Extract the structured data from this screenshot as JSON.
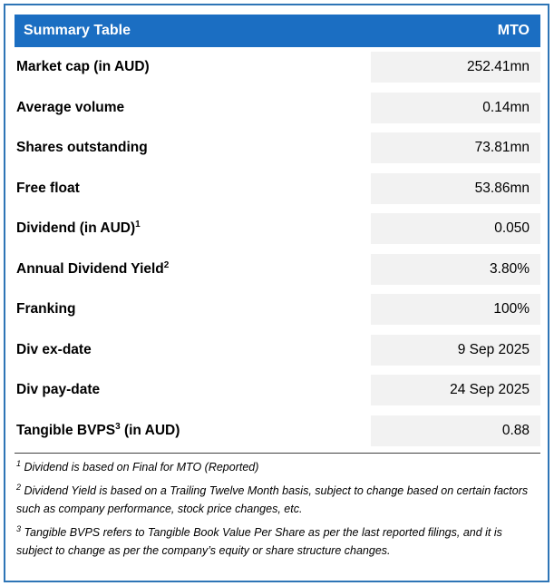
{
  "colors": {
    "header_bg": "#1B6EC2",
    "border": "#2E75B6",
    "value_bg": "#F2F2F2",
    "rule": "#404040"
  },
  "table": {
    "header": {
      "title": "Summary Table",
      "column": "MTO"
    },
    "rows": [
      {
        "label_pre": "Market cap (in AUD)",
        "sup": "",
        "label_post": "",
        "value": "252.41mn"
      },
      {
        "label_pre": "Average volume",
        "sup": "",
        "label_post": "",
        "value": "0.14mn"
      },
      {
        "label_pre": "Shares outstanding",
        "sup": "",
        "label_post": "",
        "value": "73.81mn"
      },
      {
        "label_pre": "Free float",
        "sup": "",
        "label_post": "",
        "value": "53.86mn"
      },
      {
        "label_pre": "Dividend (in AUD)",
        "sup": "1",
        "label_post": "",
        "value": "0.050"
      },
      {
        "label_pre": "Annual Dividend Yield",
        "sup": "2",
        "label_post": "",
        "value": "3.80%"
      },
      {
        "label_pre": "Franking",
        "sup": "",
        "label_post": "",
        "value": "100%"
      },
      {
        "label_pre": "Div ex-date",
        "sup": "",
        "label_post": "",
        "value": "9 Sep 2025"
      },
      {
        "label_pre": "Div pay-date",
        "sup": "",
        "label_post": "",
        "value": "24 Sep 2025"
      },
      {
        "label_pre": "Tangible BVPS",
        "sup": "3",
        "label_post": " (in AUD)",
        "value": "0.88"
      }
    ]
  },
  "footnotes": [
    {
      "sup": "1",
      "text": "Dividend is based on Final for MTO (Reported)"
    },
    {
      "sup": "2",
      "text": "Dividend Yield is based on a Trailing Twelve Month basis, subject to change based on certain factors such as company performance, stock price changes, etc."
    },
    {
      "sup": "3",
      "text": "Tangible BVPS refers to Tangible Book Value Per Share as per the last reported filings, and it is subject to change as per the company’s equity or share structure changes."
    }
  ],
  "chart_data": {
    "type": "table",
    "title": "Summary Table",
    "columns": [
      "Summary Table",
      "MTO"
    ],
    "rows": [
      [
        "Market cap (in AUD)",
        "252.41mn"
      ],
      [
        "Average volume",
        "0.14mn"
      ],
      [
        "Shares outstanding",
        "73.81mn"
      ],
      [
        "Free float",
        "53.86mn"
      ],
      [
        "Dividend (in AUD)",
        "0.050"
      ],
      [
        "Annual Dividend Yield",
        "3.80%"
      ],
      [
        "Franking",
        "100%"
      ],
      [
        "Div ex-date",
        "9 Sep 2025"
      ],
      [
        "Div pay-date",
        "24 Sep 2025"
      ],
      [
        "Tangible BVPS (in AUD)",
        "0.88"
      ]
    ]
  }
}
